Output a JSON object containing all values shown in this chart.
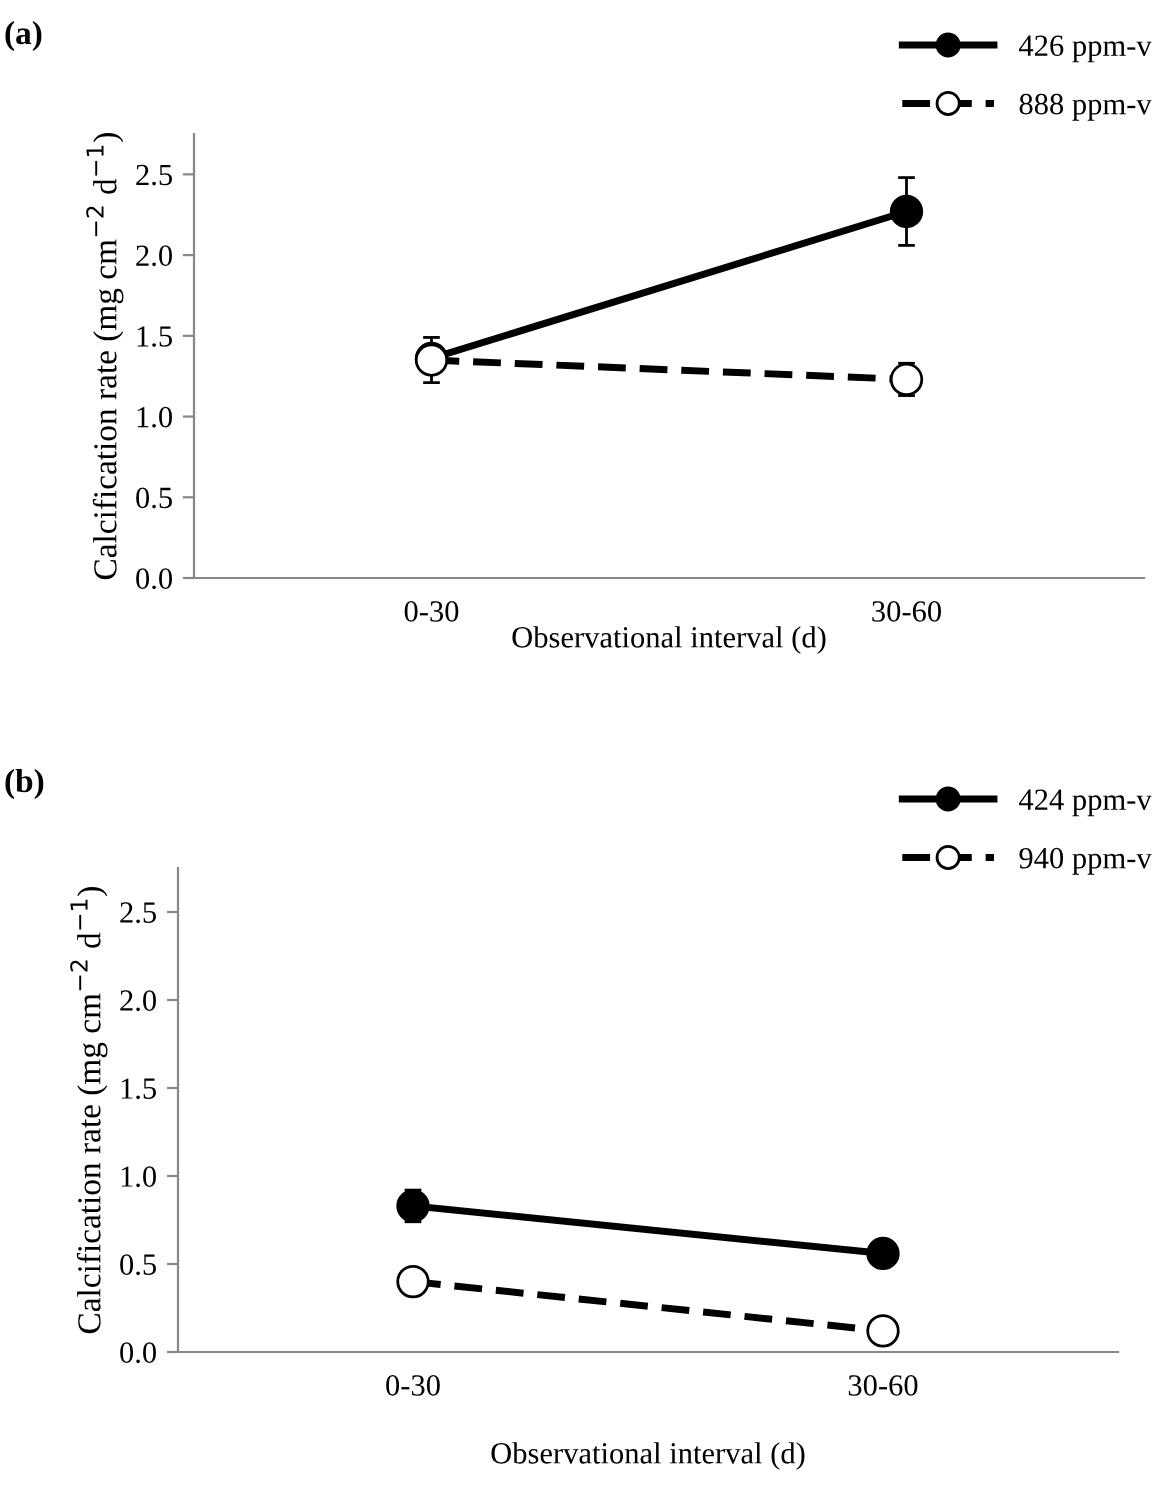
{
  "chart_data": [
    {
      "type": "line",
      "title": "(a)",
      "xlabel": "Observational interval (d)",
      "ylabel": "Calcification rate (mg cm$^{−2}$ d$^{−1}$)",
      "categories": [
        "0-30",
        "30-60"
      ],
      "series": [
        {
          "name": "426 ppm-v",
          "color": "#000000",
          "line_style": "solid",
          "values": [
            1.36,
            2.27
          ],
          "errors": [
            null,
            0.21
          ]
        },
        {
          "name": "888 ppm-v",
          "color": "#000000",
          "line_style": "dashed",
          "values": [
            1.35,
            1.23
          ],
          "errors": [
            0.14,
            0.1
          ]
        }
      ],
      "ylim": [
        0,
        2.75
      ],
      "yticks": [
        {
          "value": 0,
          "label": "0.0"
        },
        {
          "value": 0.5,
          "label": "0.5"
        },
        {
          "value": 1,
          "label": "1.0"
        },
        {
          "value": 1.5,
          "label": "1.5"
        },
        {
          "value": 2,
          "label": "2.0"
        },
        {
          "value": 2.5,
          "label": "2.5"
        }
      ],
      "marker": "circle",
      "legend": "top right",
      "grid": false
    },
    {
      "type": "line",
      "title": "(b)",
      "xlabel": "Observational interval (d)",
      "ylabel": "Calcification rate (mg cm$^{−2}$ d$^{−1}$)",
      "categories": [
        "0-30",
        "30-60"
      ],
      "series": [
        {
          "name": "424 ppm-v",
          "color": "#000000",
          "line_style": "solid",
          "values": [
            0.83,
            0.56
          ],
          "errors": [
            0.09,
            0.05
          ]
        },
        {
          "name": "940 ppm-v",
          "color": "#000000",
          "line_style": "dashed",
          "values": [
            0.4,
            0.12
          ]
        }
      ],
      "ylim": [
        0,
        2.75
      ],
      "yticks": [
        {
          "value": 0,
          "label": "0.0"
        },
        {
          "value": 0.5,
          "label": "0.5"
        },
        {
          "value": 1,
          "label": "1.0"
        },
        {
          "value": 1.5,
          "label": "1.5"
        },
        {
          "value": 2,
          "label": "2.0"
        },
        {
          "value": 2.5,
          "label": "2.5"
        }
      ],
      "marker": "circle",
      "legend": "top right",
      "grid": false
    }
  ]
}
